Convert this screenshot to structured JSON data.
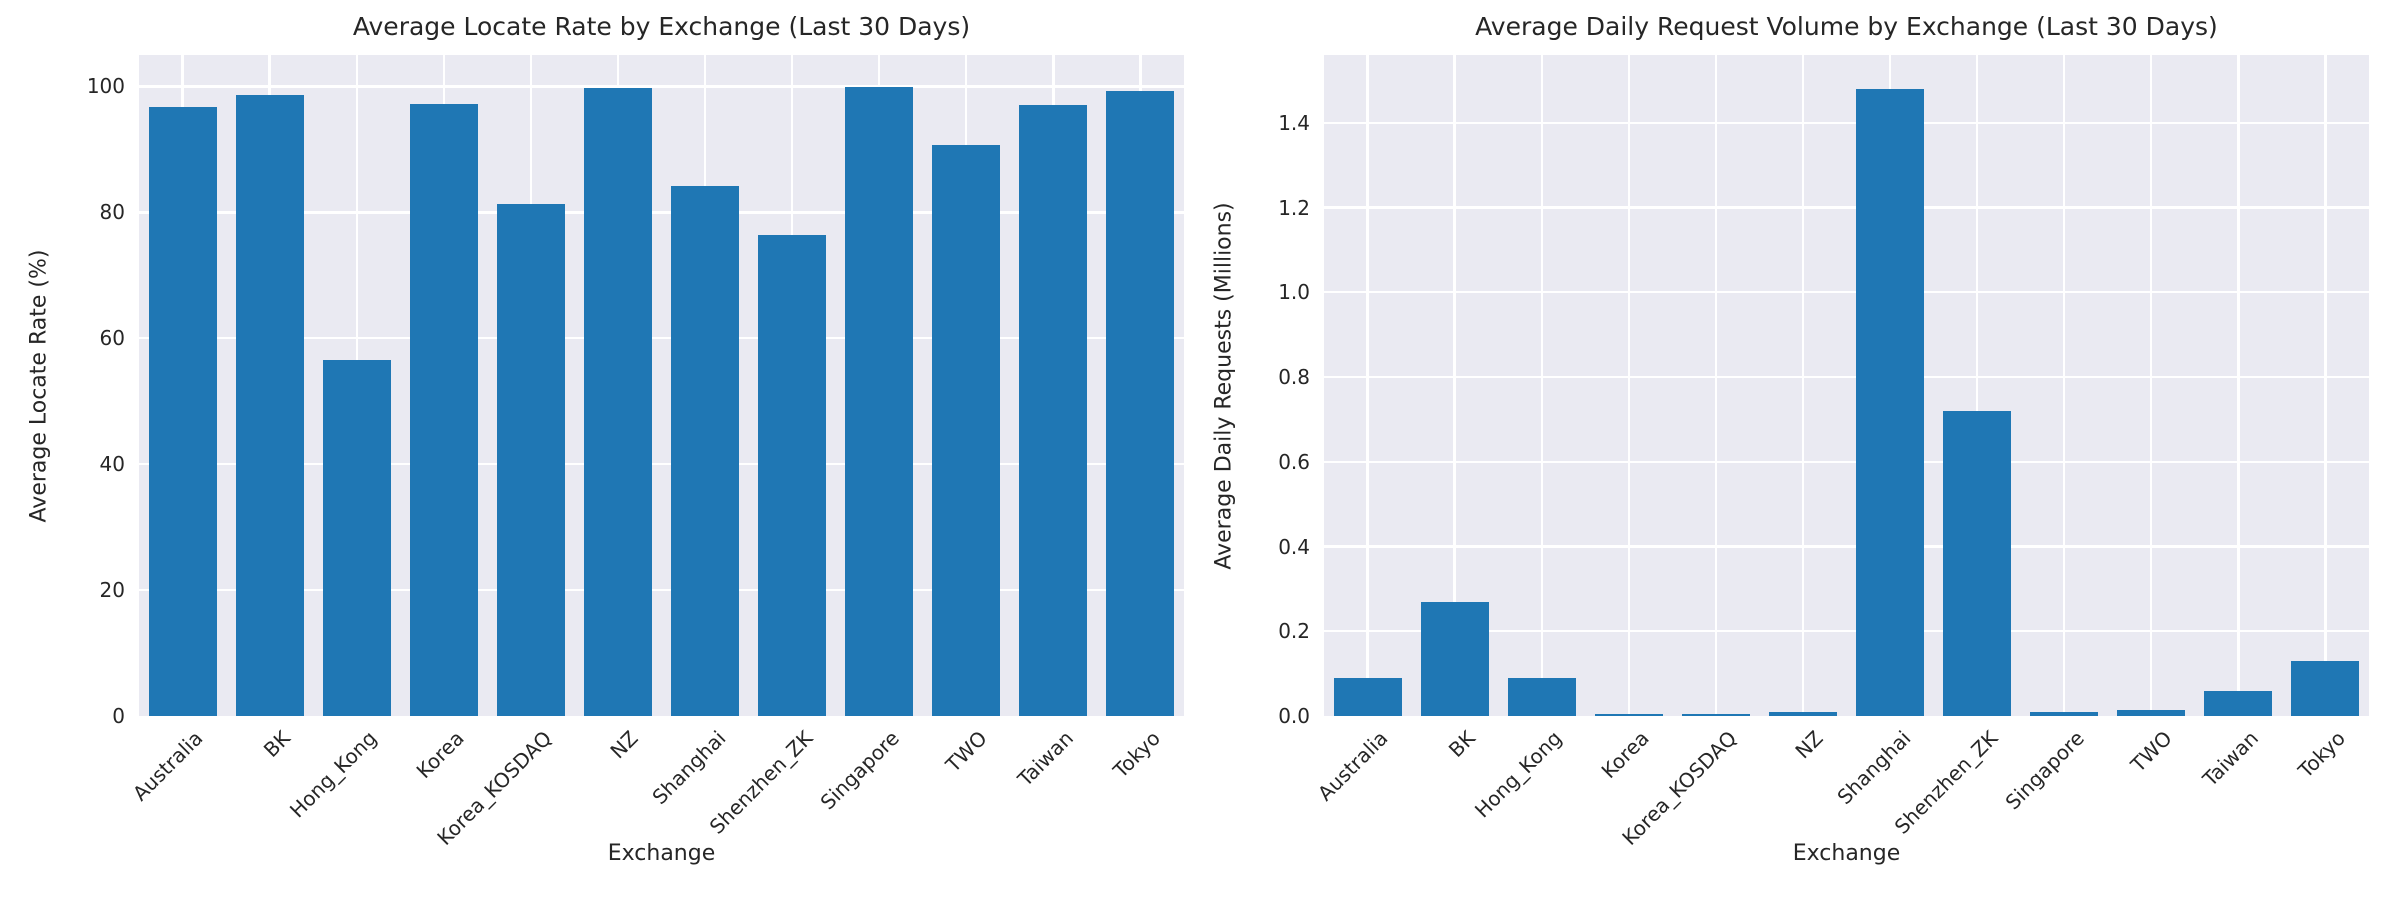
{
  "figure": {
    "background_color": "#ffffff",
    "axes_background_color": "#eaeaf2",
    "gridline_color": "#ffffff",
    "bar_color": "#1f77b4",
    "text_color": "#262626"
  },
  "chart_data": [
    {
      "type": "bar",
      "title": "Average Locate Rate by Exchange (Last 30 Days)",
      "xlabel": "Exchange",
      "ylabel": "Average Locate Rate (%)",
      "categories": [
        "Australia",
        "BK",
        "Hong_Kong",
        "Korea",
        "Korea_KOSDAQ",
        "NZ",
        "Shanghai",
        "Shenzhen_ZK",
        "Singapore",
        "TWO",
        "Taiwan",
        "Tokyo"
      ],
      "values": [
        96.8,
        98.6,
        56.6,
        97.2,
        81.3,
        99.8,
        84.2,
        76.4,
        99.9,
        90.7,
        97.0,
        99.3
      ],
      "yticks": [
        0,
        20,
        40,
        60,
        80,
        100
      ],
      "ytick_labels": [
        "0",
        "20",
        "40",
        "60",
        "80",
        "100"
      ],
      "ylim": [
        0,
        105
      ],
      "grid": true,
      "legend_position": "none",
      "xtick_rotation_deg": 45,
      "bar_width_frac": 0.78
    },
    {
      "type": "bar",
      "title": "Average Daily Request Volume by Exchange (Last 30 Days)",
      "xlabel": "Exchange",
      "ylabel": "Average Daily Requests (Millions)",
      "categories": [
        "Australia",
        "BK",
        "Hong_Kong",
        "Korea",
        "Korea_KOSDAQ",
        "NZ",
        "Shanghai",
        "Shenzhen_ZK",
        "Singapore",
        "TWO",
        "Taiwan",
        "Tokyo"
      ],
      "values": [
        0.09,
        0.27,
        0.09,
        0.005,
        0.005,
        0.01,
        1.48,
        0.72,
        0.009,
        0.013,
        0.06,
        0.13
      ],
      "yticks": [
        0.0,
        0.2,
        0.4,
        0.6,
        0.8,
        1.0,
        1.2,
        1.4
      ],
      "ytick_labels": [
        "0.0",
        "0.2",
        "0.4",
        "0.6",
        "0.8",
        "1.0",
        "1.2",
        "1.4"
      ],
      "ylim": [
        0,
        1.56
      ],
      "grid": true,
      "legend_position": "none",
      "xtick_rotation_deg": 45,
      "bar_width_frac": 0.78
    }
  ]
}
